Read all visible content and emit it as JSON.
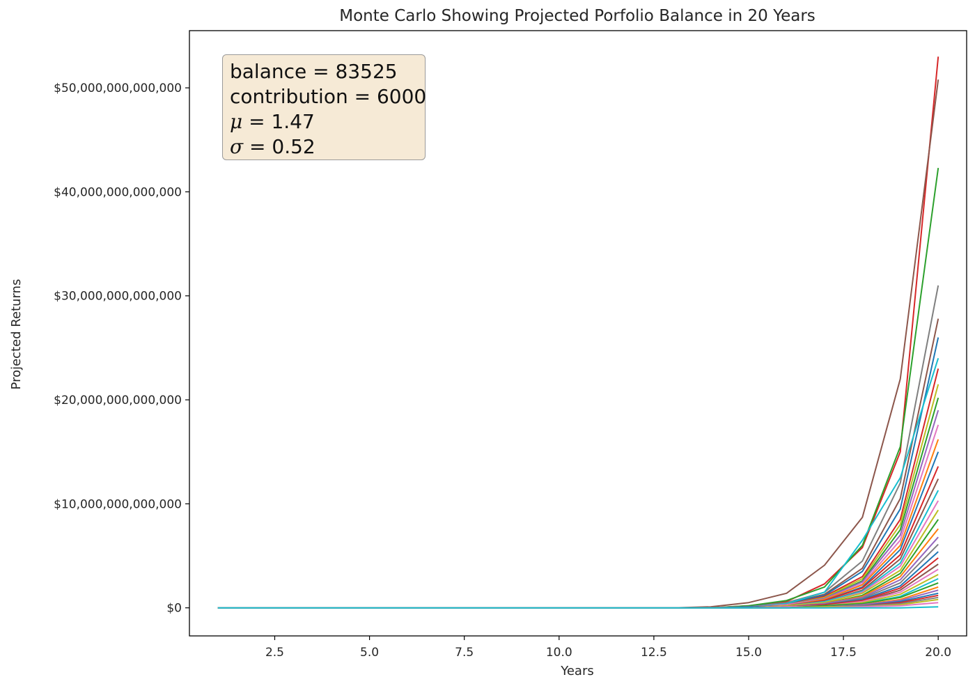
{
  "chart_data": {
    "type": "line",
    "title": "Monte Carlo Showing Projected Porfolio Balance in 20 Years",
    "xlabel": "Years",
    "ylabel": "Projected Returns",
    "xlim": [
      0.25,
      20.75
    ],
    "ylim": [
      -2700000000000,
      55500000000000
    ],
    "x_ticks": [
      2.5,
      5.0,
      7.5,
      10.0,
      12.5,
      15.0,
      17.5,
      20.0
    ],
    "x_tick_labels": [
      "2.5",
      "5.0",
      "7.5",
      "10.0",
      "12.5",
      "15.0",
      "17.5",
      "20.0"
    ],
    "y_ticks": [
      0,
      10000000000000,
      20000000000000,
      30000000000000,
      40000000000000,
      50000000000000
    ],
    "y_tick_labels": [
      "$0",
      "$10,000,000,000,000",
      "$20,000,000,000,000",
      "$30,000,000,000,000",
      "$40,000,000,000,000",
      "$50,000,000,000,000"
    ],
    "grid": false,
    "x": [
      1,
      2,
      3,
      4,
      5,
      6,
      7,
      8,
      9,
      10,
      11,
      12,
      13,
      14,
      15,
      16,
      17,
      18,
      19,
      20
    ],
    "series_note": "Many simulated paths; values in dollars, flat near 0 until about year 14.",
    "series": [
      {
        "color": "#d62728",
        "values": [
          0,
          0,
          0,
          0,
          0,
          0,
          0,
          0,
          0,
          0,
          0,
          0,
          0,
          0,
          200000000000,
          600000000000,
          2300000000000,
          5800000000000,
          15000000000000,
          53000000000000
        ]
      },
      {
        "color": "#8c564b",
        "values": [
          0,
          0,
          0,
          0,
          0,
          0,
          0,
          0,
          0,
          0,
          0,
          0,
          0,
          100000000000,
          500000000000,
          1400000000000,
          4100000000000,
          8700000000000,
          22000000000000,
          50800000000000
        ]
      },
      {
        "color": "#2ca02c",
        "values": [
          0,
          0,
          0,
          0,
          0,
          0,
          0,
          0,
          0,
          0,
          0,
          0,
          0,
          0,
          200000000000,
          700000000000,
          2000000000000,
          6000000000000,
          15500000000000,
          42300000000000
        ]
      },
      {
        "color": "#7f7f7f",
        "values": [
          0,
          0,
          0,
          0,
          0,
          0,
          0,
          0,
          0,
          0,
          0,
          0,
          0,
          0,
          100000000000,
          500000000000,
          1500000000000,
          4500000000000,
          12000000000000,
          31000000000000
        ]
      },
      {
        "color": "#8c564b",
        "values": [
          0,
          0,
          0,
          0,
          0,
          0,
          0,
          0,
          0,
          0,
          0,
          0,
          0,
          0,
          100000000000,
          400000000000,
          1300000000000,
          3800000000000,
          10500000000000,
          27800000000000
        ]
      },
      {
        "color": "#1f77b4",
        "values": [
          0,
          0,
          0,
          0,
          0,
          0,
          0,
          0,
          0,
          0,
          0,
          0,
          0,
          0,
          100000000000,
          400000000000,
          1200000000000,
          3500000000000,
          9500000000000,
          26000000000000
        ]
      },
      {
        "color": "#17becf",
        "values": [
          0,
          0,
          0,
          0,
          0,
          0,
          0,
          0,
          0,
          0,
          0,
          0,
          0,
          0,
          100000000000,
          400000000000,
          1500000000000,
          6500000000000,
          12500000000000,
          24000000000000
        ]
      },
      {
        "color": "#d62728",
        "values": [
          0,
          0,
          0,
          0,
          0,
          0,
          0,
          0,
          0,
          0,
          0,
          0,
          0,
          0,
          100000000000,
          300000000000,
          1100000000000,
          3000000000000,
          8500000000000,
          23000000000000
        ]
      },
      {
        "color": "#bcbd22",
        "values": [
          0,
          0,
          0,
          0,
          0,
          0,
          0,
          0,
          0,
          0,
          0,
          0,
          0,
          0,
          100000000000,
          300000000000,
          1000000000000,
          2800000000000,
          8000000000000,
          21500000000000
        ]
      },
      {
        "color": "#2ca02c",
        "values": [
          0,
          0,
          0,
          0,
          0,
          0,
          0,
          0,
          0,
          0,
          0,
          0,
          0,
          0,
          100000000000,
          300000000000,
          900000000000,
          2600000000000,
          7500000000000,
          20200000000000
        ]
      },
      {
        "color": "#9467bd",
        "values": [
          0,
          0,
          0,
          0,
          0,
          0,
          0,
          0,
          0,
          0,
          0,
          0,
          0,
          0,
          100000000000,
          300000000000,
          900000000000,
          2500000000000,
          7000000000000,
          19000000000000
        ]
      },
      {
        "color": "#e377c2",
        "values": [
          0,
          0,
          0,
          0,
          0,
          0,
          0,
          0,
          0,
          0,
          0,
          0,
          0,
          0,
          100000000000,
          300000000000,
          800000000000,
          2300000000000,
          6500000000000,
          17600000000000
        ]
      },
      {
        "color": "#ff7f0e",
        "values": [
          0,
          0,
          0,
          0,
          0,
          0,
          0,
          0,
          0,
          0,
          0,
          0,
          0,
          0,
          100000000000,
          200000000000,
          800000000000,
          2200000000000,
          6000000000000,
          16200000000000
        ]
      },
      {
        "color": "#1f77b4",
        "values": [
          0,
          0,
          0,
          0,
          0,
          0,
          0,
          0,
          0,
          0,
          0,
          0,
          0,
          0,
          100000000000,
          200000000000,
          700000000000,
          2000000000000,
          5600000000000,
          15000000000000
        ]
      },
      {
        "color": "#d62728",
        "values": [
          0,
          0,
          0,
          0,
          0,
          0,
          0,
          0,
          0,
          0,
          0,
          0,
          0,
          0,
          0,
          200000000000,
          700000000000,
          1900000000000,
          5100000000000,
          13600000000000
        ]
      },
      {
        "color": "#8c564b",
        "values": [
          0,
          0,
          0,
          0,
          0,
          0,
          0,
          0,
          0,
          0,
          0,
          0,
          0,
          0,
          0,
          200000000000,
          600000000000,
          1700000000000,
          4700000000000,
          12400000000000
        ]
      },
      {
        "color": "#17becf",
        "values": [
          0,
          0,
          0,
          0,
          0,
          0,
          0,
          0,
          0,
          0,
          0,
          0,
          0,
          0,
          0,
          200000000000,
          600000000000,
          1600000000000,
          4300000000000,
          11300000000000
        ]
      },
      {
        "color": "#e377c2",
        "values": [
          0,
          0,
          0,
          0,
          0,
          0,
          0,
          0,
          0,
          0,
          0,
          0,
          0,
          0,
          0,
          200000000000,
          500000000000,
          1500000000000,
          4000000000000,
          10300000000000
        ]
      },
      {
        "color": "#bcbd22",
        "values": [
          0,
          0,
          0,
          0,
          0,
          0,
          0,
          0,
          0,
          0,
          0,
          0,
          0,
          0,
          0,
          200000000000,
          500000000000,
          1400000000000,
          3600000000000,
          9400000000000
        ]
      },
      {
        "color": "#2ca02c",
        "values": [
          0,
          0,
          0,
          0,
          0,
          0,
          0,
          0,
          0,
          0,
          0,
          0,
          0,
          0,
          0,
          100000000000,
          400000000000,
          1200000000000,
          3300000000000,
          8500000000000
        ]
      },
      {
        "color": "#ff7f0e",
        "values": [
          0,
          0,
          0,
          0,
          0,
          0,
          0,
          0,
          0,
          0,
          0,
          0,
          0,
          0,
          0,
          100000000000,
          400000000000,
          1100000000000,
          3000000000000,
          7600000000000
        ]
      },
      {
        "color": "#9467bd",
        "values": [
          0,
          0,
          0,
          0,
          0,
          0,
          0,
          0,
          0,
          0,
          0,
          0,
          0,
          0,
          0,
          100000000000,
          400000000000,
          1000000000000,
          2700000000000,
          6800000000000
        ]
      },
      {
        "color": "#7f7f7f",
        "values": [
          0,
          0,
          0,
          0,
          0,
          0,
          0,
          0,
          0,
          0,
          0,
          0,
          0,
          0,
          0,
          100000000000,
          300000000000,
          900000000000,
          2400000000000,
          6100000000000
        ]
      },
      {
        "color": "#1f77b4",
        "values": [
          0,
          0,
          0,
          0,
          0,
          0,
          0,
          0,
          0,
          0,
          0,
          0,
          0,
          0,
          0,
          100000000000,
          300000000000,
          800000000000,
          2100000000000,
          5400000000000
        ]
      },
      {
        "color": "#d62728",
        "values": [
          0,
          0,
          0,
          0,
          0,
          0,
          0,
          0,
          0,
          0,
          0,
          0,
          0,
          0,
          0,
          100000000000,
          300000000000,
          700000000000,
          1900000000000,
          4800000000000
        ]
      },
      {
        "color": "#8c564b",
        "values": [
          0,
          0,
          0,
          0,
          0,
          0,
          0,
          0,
          0,
          0,
          0,
          0,
          0,
          0,
          0,
          100000000000,
          200000000000,
          600000000000,
          1700000000000,
          4200000000000
        ]
      },
      {
        "color": "#e377c2",
        "values": [
          0,
          0,
          0,
          0,
          0,
          0,
          0,
          0,
          0,
          0,
          0,
          0,
          0,
          0,
          0,
          100000000000,
          200000000000,
          600000000000,
          1500000000000,
          3700000000000
        ]
      },
      {
        "color": "#bcbd22",
        "values": [
          0,
          0,
          0,
          0,
          0,
          0,
          0,
          0,
          0,
          0,
          0,
          0,
          0,
          0,
          0,
          0,
          200000000000,
          500000000000,
          1300000000000,
          3200000000000
        ]
      },
      {
        "color": "#17becf",
        "values": [
          0,
          0,
          0,
          0,
          0,
          0,
          0,
          0,
          0,
          0,
          0,
          0,
          0,
          0,
          0,
          0,
          200000000000,
          400000000000,
          1100000000000,
          2800000000000
        ]
      },
      {
        "color": "#2ca02c",
        "values": [
          0,
          0,
          0,
          0,
          0,
          0,
          0,
          0,
          0,
          0,
          0,
          0,
          0,
          0,
          0,
          0,
          200000000000,
          400000000000,
          1000000000000,
          2400000000000
        ]
      },
      {
        "color": "#ff7f0e",
        "values": [
          0,
          0,
          0,
          0,
          0,
          0,
          0,
          0,
          0,
          0,
          0,
          0,
          0,
          0,
          0,
          0,
          100000000000,
          300000000000,
          800000000000,
          2000000000000
        ]
      },
      {
        "color": "#9467bd",
        "values": [
          0,
          0,
          0,
          0,
          0,
          0,
          0,
          0,
          0,
          0,
          0,
          0,
          0,
          0,
          0,
          0,
          100000000000,
          300000000000,
          700000000000,
          1700000000000
        ]
      },
      {
        "color": "#1f77b4",
        "values": [
          0,
          0,
          0,
          0,
          0,
          0,
          0,
          0,
          0,
          0,
          0,
          0,
          0,
          0,
          0,
          0,
          100000000000,
          200000000000,
          600000000000,
          1400000000000
        ]
      },
      {
        "color": "#d62728",
        "values": [
          0,
          0,
          0,
          0,
          0,
          0,
          0,
          0,
          0,
          0,
          0,
          0,
          0,
          0,
          0,
          0,
          100000000000,
          200000000000,
          500000000000,
          1200000000000
        ]
      },
      {
        "color": "#7f7f7f",
        "values": [
          0,
          0,
          0,
          0,
          0,
          0,
          0,
          0,
          0,
          0,
          0,
          0,
          0,
          0,
          0,
          0,
          100000000000,
          200000000000,
          400000000000,
          1000000000000
        ]
      },
      {
        "color": "#bcbd22",
        "values": [
          0,
          0,
          0,
          0,
          0,
          0,
          0,
          0,
          0,
          0,
          0,
          0,
          0,
          0,
          0,
          0,
          100000000000,
          100000000000,
          300000000000,
          800000000000
        ]
      },
      {
        "color": "#e377c2",
        "values": [
          0,
          0,
          0,
          0,
          0,
          0,
          0,
          0,
          0,
          0,
          0,
          0,
          0,
          0,
          0,
          0,
          0,
          100000000000,
          200000000000,
          500000000000
        ]
      },
      {
        "color": "#17becf",
        "values": [
          0,
          0,
          0,
          0,
          0,
          0,
          0,
          0,
          0,
          0,
          0,
          0,
          0,
          0,
          0,
          0,
          0,
          0,
          0,
          100000000000
        ]
      }
    ]
  },
  "infobox": {
    "balance": "balance = 83525",
    "contribution": "contribution = 6000",
    "mu_symbol": "μ",
    "mu_value": " = 1.47",
    "sigma_symbol": "σ",
    "sigma_value": " = 0.52"
  }
}
